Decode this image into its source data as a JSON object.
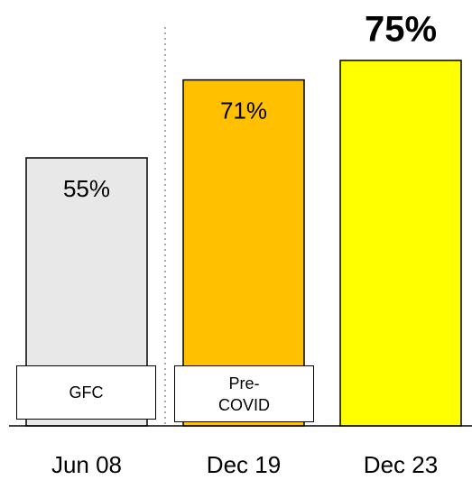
{
  "chart_data": {
    "type": "bar",
    "categories": [
      "Jun 08",
      "Dec 19",
      "Dec 23"
    ],
    "values": [
      55,
      71,
      75
    ],
    "value_labels": [
      "55%",
      "71%",
      "75%"
    ],
    "colors": [
      "#e8e8e8",
      "#ffc000",
      "#ffff00"
    ],
    "annotations": [
      "GFC",
      "Pre-COVID"
    ]
  }
}
